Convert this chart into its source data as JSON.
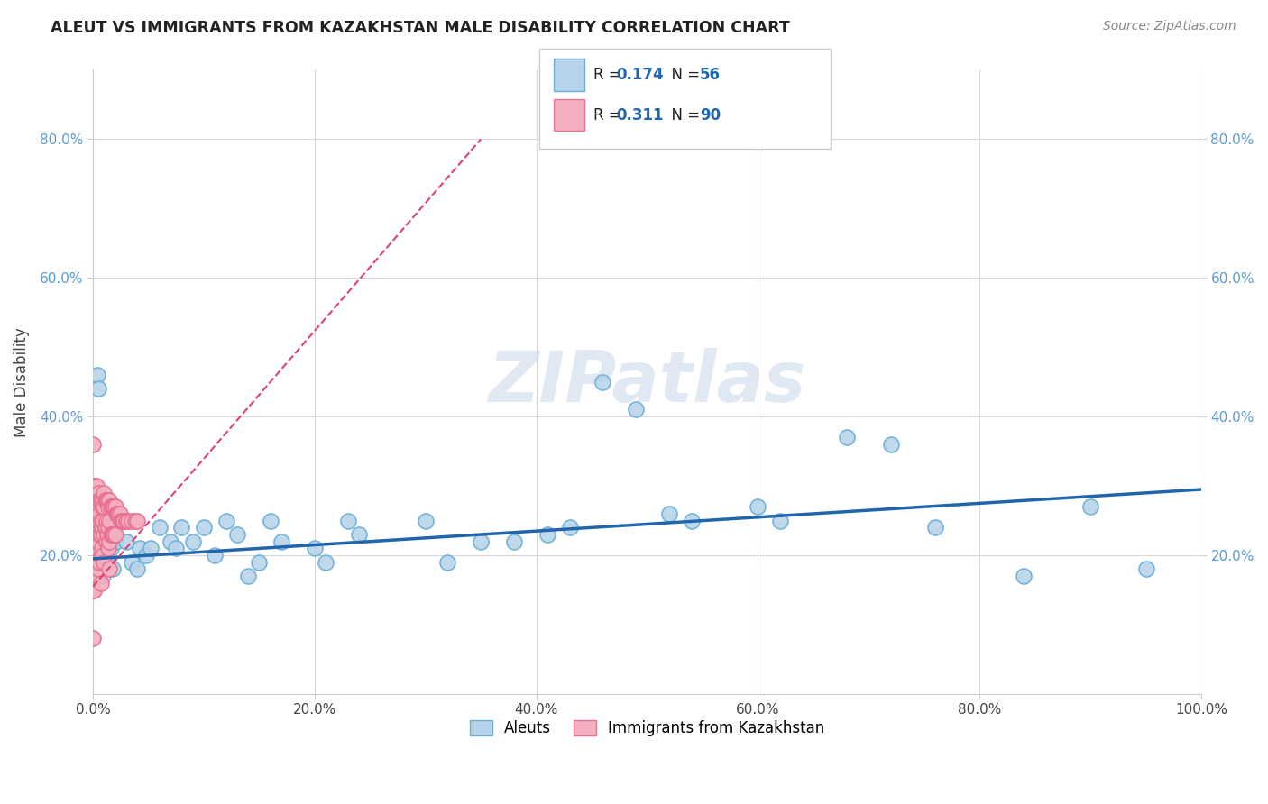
{
  "title": "ALEUT VS IMMIGRANTS FROM KAZAKHSTAN MALE DISABILITY CORRELATION CHART",
  "source": "Source: ZipAtlas.com",
  "ylabel": "Male Disability",
  "legend_entries": [
    {
      "label": "Aleuts",
      "R": "0.174",
      "N": "56"
    },
    {
      "label": "Immigrants from Kazakhstan",
      "R": "0.311",
      "N": "90"
    }
  ],
  "aleut_color": "#6baed6",
  "aleut_fill": "#b8d4ea",
  "kazakh_color": "#e87090",
  "kazakh_fill": "#f4b0c0",
  "trendline_aleut_color": "#2166ac",
  "trendline_kazakh_color": "#e04070",
  "background_color": "#ffffff",
  "grid_color": "#d8d8d8",
  "xlim": [
    0.0,
    1.0
  ],
  "ylim": [
    0.0,
    0.9
  ],
  "xtick_labels": [
    "0.0%",
    "20.0%",
    "40.0%",
    "60.0%",
    "80.0%",
    "100.0%"
  ],
  "xtick_values": [
    0.0,
    0.2,
    0.4,
    0.6,
    0.8,
    1.0
  ],
  "ytick_labels": [
    "20.0%",
    "40.0%",
    "60.0%",
    "80.0%"
  ],
  "ytick_values": [
    0.2,
    0.4,
    0.6,
    0.8
  ],
  "watermark": "ZIPatlas",
  "aleuts_x": [
    0.002,
    0.004,
    0.005,
    0.006,
    0.007,
    0.008,
    0.009,
    0.01,
    0.012,
    0.013,
    0.015,
    0.016,
    0.018,
    0.02,
    0.025,
    0.03,
    0.035,
    0.04,
    0.042,
    0.048,
    0.052,
    0.06,
    0.07,
    0.075,
    0.08,
    0.09,
    0.1,
    0.11,
    0.12,
    0.13,
    0.14,
    0.15,
    0.16,
    0.17,
    0.2,
    0.21,
    0.23,
    0.24,
    0.3,
    0.32,
    0.35,
    0.38,
    0.41,
    0.43,
    0.46,
    0.49,
    0.52,
    0.54,
    0.6,
    0.62,
    0.68,
    0.72,
    0.76,
    0.84,
    0.9,
    0.95
  ],
  "aleuts_y": [
    0.21,
    0.46,
    0.44,
    0.2,
    0.22,
    0.19,
    0.17,
    0.24,
    0.19,
    0.21,
    0.22,
    0.21,
    0.18,
    0.22,
    0.25,
    0.22,
    0.19,
    0.18,
    0.21,
    0.2,
    0.21,
    0.24,
    0.22,
    0.21,
    0.24,
    0.22,
    0.24,
    0.2,
    0.25,
    0.23,
    0.17,
    0.19,
    0.25,
    0.22,
    0.21,
    0.19,
    0.25,
    0.23,
    0.25,
    0.19,
    0.22,
    0.22,
    0.23,
    0.24,
    0.45,
    0.41,
    0.26,
    0.25,
    0.27,
    0.25,
    0.37,
    0.36,
    0.24,
    0.17,
    0.27,
    0.18
  ],
  "kazakh_x": [
    0.0,
    0.0,
    0.0,
    0.0,
    0.0,
    0.001,
    0.001,
    0.001,
    0.001,
    0.001,
    0.001,
    0.001,
    0.002,
    0.002,
    0.002,
    0.002,
    0.002,
    0.002,
    0.003,
    0.003,
    0.003,
    0.003,
    0.003,
    0.004,
    0.004,
    0.004,
    0.004,
    0.004,
    0.005,
    0.005,
    0.005,
    0.005,
    0.005,
    0.006,
    0.006,
    0.006,
    0.006,
    0.007,
    0.007,
    0.007,
    0.007,
    0.007,
    0.008,
    0.008,
    0.008,
    0.009,
    0.009,
    0.009,
    0.01,
    0.01,
    0.01,
    0.01,
    0.011,
    0.011,
    0.012,
    0.012,
    0.012,
    0.013,
    0.013,
    0.014,
    0.014,
    0.014,
    0.015,
    0.015,
    0.015,
    0.015,
    0.016,
    0.016,
    0.017,
    0.017,
    0.018,
    0.018,
    0.019,
    0.019,
    0.02,
    0.02,
    0.021,
    0.022,
    0.023,
    0.024,
    0.025,
    0.026,
    0.027,
    0.028,
    0.03,
    0.032,
    0.035,
    0.038,
    0.04,
    0.0
  ],
  "kazakh_y": [
    0.36,
    0.22,
    0.2,
    0.18,
    0.15,
    0.3,
    0.27,
    0.24,
    0.22,
    0.2,
    0.18,
    0.15,
    0.28,
    0.25,
    0.23,
    0.21,
    0.19,
    0.17,
    0.3,
    0.27,
    0.25,
    0.23,
    0.18,
    0.28,
    0.26,
    0.24,
    0.22,
    0.17,
    0.29,
    0.27,
    0.25,
    0.22,
    0.18,
    0.28,
    0.26,
    0.23,
    0.19,
    0.28,
    0.25,
    0.23,
    0.2,
    0.16,
    0.27,
    0.24,
    0.21,
    0.28,
    0.25,
    0.2,
    0.29,
    0.27,
    0.23,
    0.19,
    0.28,
    0.24,
    0.28,
    0.25,
    0.22,
    0.28,
    0.23,
    0.27,
    0.24,
    0.21,
    0.28,
    0.25,
    0.22,
    0.18,
    0.27,
    0.23,
    0.27,
    0.23,
    0.27,
    0.23,
    0.27,
    0.23,
    0.27,
    0.23,
    0.26,
    0.26,
    0.26,
    0.26,
    0.25,
    0.25,
    0.25,
    0.25,
    0.25,
    0.25,
    0.25,
    0.25,
    0.25,
    0.08
  ],
  "aleut_trend_x0": 0.0,
  "aleut_trend_x1": 1.0,
  "aleut_trend_y0": 0.195,
  "aleut_trend_y1": 0.295,
  "kazakh_trend_x0": 0.0,
  "kazakh_trend_x1": 0.35,
  "kazakh_trend_y0": 0.155,
  "kazakh_trend_y1": 0.8
}
